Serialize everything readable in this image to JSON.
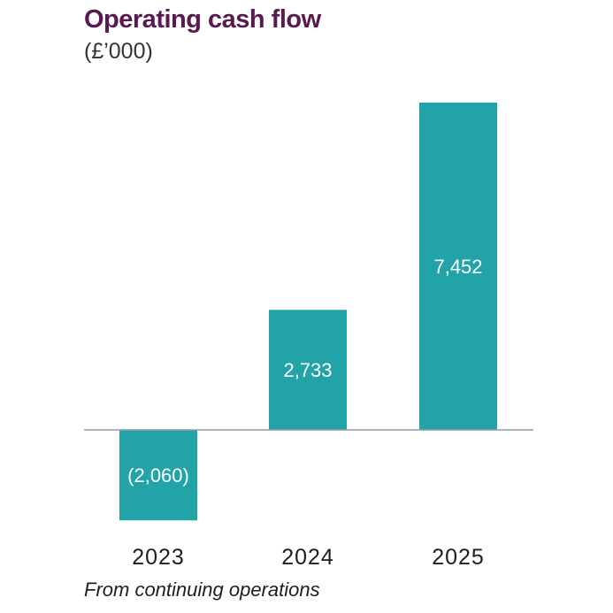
{
  "chart_data": {
    "type": "bar",
    "title": "Operating cash flow",
    "subtitle": "(£’000)",
    "categories": [
      "2023",
      "2024",
      "2025"
    ],
    "values": [
      -2060,
      2733,
      7452
    ],
    "data_labels": [
      "(2,060)",
      "2,733",
      "7,452"
    ],
    "footnote": "From continuing operations",
    "xlabel": "",
    "ylabel": "",
    "ylim": [
      -2060,
      7452
    ],
    "grid": false,
    "legend": "none",
    "colors": {
      "bar": "#22a3a8",
      "axis": "#8aa2a6",
      "title": "#5a1a4f",
      "label_inside": "#ffffff",
      "tick_label": "#1e1e1e"
    }
  }
}
